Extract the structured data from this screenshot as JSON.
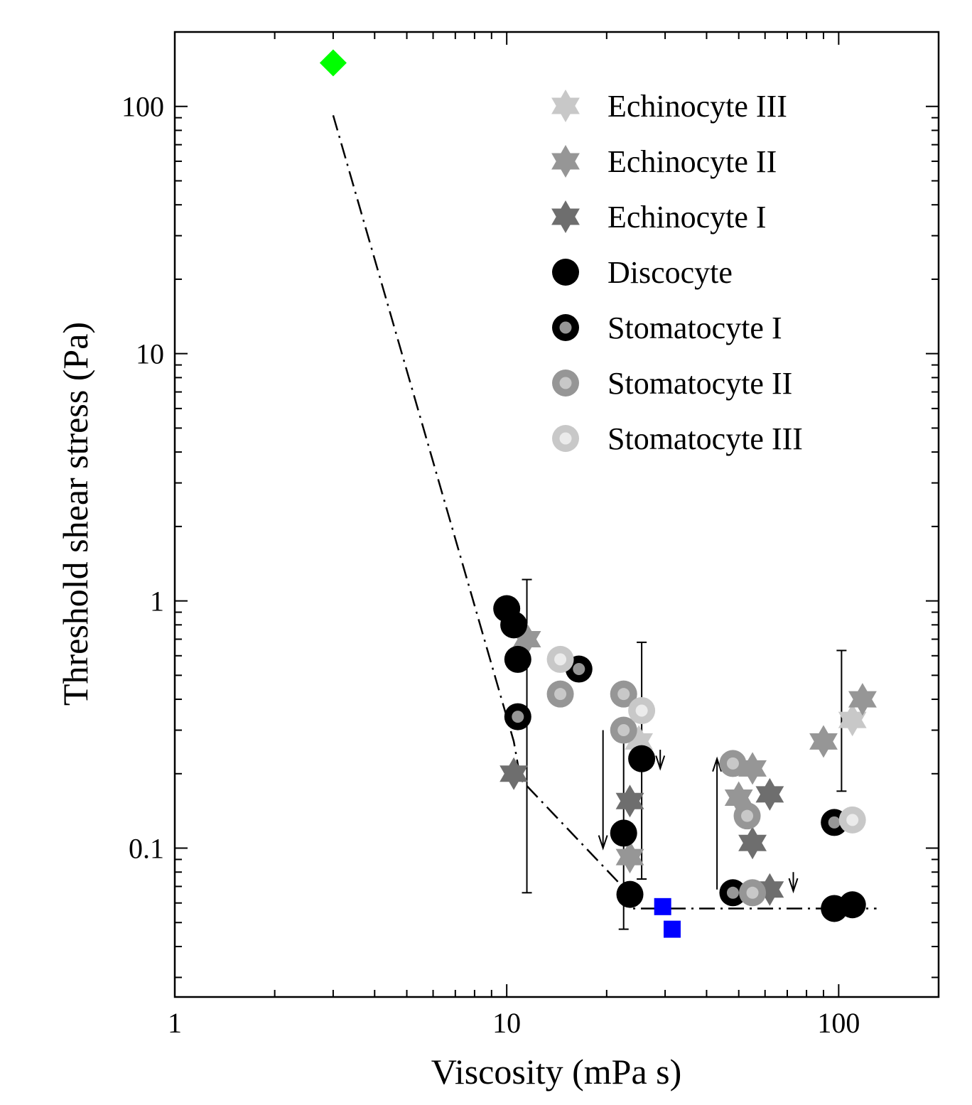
{
  "chart_data": {
    "type": "scatter",
    "title": "",
    "xlabel": "Viscosity (mPa s)",
    "ylabel": "Threshold shear stress (Pa)",
    "x_scale": "log",
    "y_scale": "log",
    "xlim": [
      1,
      200
    ],
    "ylim": [
      0.025,
      200
    ],
    "x_ticks": [
      {
        "value": 1,
        "label": "1"
      },
      {
        "value": 10,
        "label": "10"
      },
      {
        "value": 100,
        "label": "100"
      }
    ],
    "y_ticks": [
      {
        "value": 0.1,
        "label": "0.1"
      },
      {
        "value": 1,
        "label": "1"
      },
      {
        "value": 10,
        "label": "10"
      },
      {
        "value": 100,
        "label": "100"
      }
    ],
    "grid": false,
    "legend_position": "top-right",
    "colors": {
      "green": "#00ff00",
      "blue": "#0000ff",
      "light": "#c8c8c8",
      "mid": "#969696",
      "dark": "#6e6e6e",
      "black": "#000000"
    },
    "series": [
      {
        "name": "Echinocyte III",
        "marker": "star6",
        "color": "#c8c8c8",
        "points": [
          [
            110,
            0.33
          ],
          [
            25,
            0.27
          ]
        ]
      },
      {
        "name": "Echinocyte II",
        "marker": "star6",
        "color": "#969696",
        "points": [
          [
            11.5,
            0.7
          ],
          [
            50,
            0.16
          ],
          [
            55,
            0.21
          ],
          [
            90,
            0.27
          ],
          [
            118,
            0.4
          ],
          [
            23.5,
            0.092
          ]
        ]
      },
      {
        "name": "Echinocyte I",
        "marker": "star6",
        "color": "#6e6e6e",
        "points": [
          [
            10.5,
            0.2
          ],
          [
            23.5,
            0.155
          ],
          [
            55,
            0.105
          ],
          [
            62,
            0.165
          ],
          [
            62,
            0.068
          ]
        ]
      },
      {
        "name": "Discocyte",
        "marker": "circle",
        "color": "#000000",
        "points": [
          [
            10,
            0.93
          ],
          [
            10.5,
            0.8
          ],
          [
            10.8,
            0.58
          ],
          [
            25.5,
            0.23
          ],
          [
            22.5,
            0.115
          ],
          [
            23.5,
            0.065
          ],
          [
            97,
            0.057
          ],
          [
            110,
            0.059
          ]
        ]
      },
      {
        "name": "Stomatocyte I",
        "marker": "ring",
        "color": "#000000",
        "inner": "#969696",
        "points": [
          [
            10.8,
            0.34
          ],
          [
            16.5,
            0.53
          ],
          [
            48,
            0.066
          ],
          [
            97,
            0.127
          ]
        ]
      },
      {
        "name": "Stomatocyte II",
        "marker": "ring",
        "color": "#969696",
        "inner": "#c8c8c8",
        "points": [
          [
            14.5,
            0.42
          ],
          [
            22.5,
            0.42
          ],
          [
            22.5,
            0.3
          ],
          [
            48,
            0.22
          ],
          [
            53,
            0.135
          ],
          [
            55,
            0.066
          ]
        ]
      },
      {
        "name": "Stomatocyte III",
        "marker": "ring",
        "color": "#c8c8c8",
        "inner": "#ebebeb",
        "points": [
          [
            14.5,
            0.58
          ],
          [
            25.5,
            0.36
          ],
          [
            110,
            0.13
          ]
        ]
      }
    ],
    "extra_points": [
      {
        "marker": "diamond",
        "color": "#00ff00",
        "points": [
          [
            3,
            150
          ]
        ]
      },
      {
        "marker": "square",
        "color": "#0000ff",
        "points": [
          [
            29.5,
            0.058
          ],
          [
            31.5,
            0.047
          ]
        ]
      }
    ],
    "error_bars": [
      {
        "x": 11.5,
        "low": 0.066,
        "high": 1.22
      },
      {
        "x": 22.5,
        "low": 0.047,
        "high": 0.27
      },
      {
        "x": 25.5,
        "low": 0.075,
        "high": 0.68
      },
      {
        "x": 102,
        "low": 0.17,
        "high": 0.63
      }
    ],
    "arrows": [
      {
        "x": 19.5,
        "from": 0.3,
        "to": 0.1
      },
      {
        "x": 29,
        "from": 0.25,
        "to": 0.21
      },
      {
        "x": 43,
        "from": 0.068,
        "to": 0.23
      },
      {
        "x": 73,
        "from": 0.08,
        "to": 0.067
      }
    ],
    "fit_line": {
      "style": "dash-dot",
      "points": [
        [
          3,
          92
        ],
        [
          10.5,
          0.27
        ],
        [
          11,
          0.19
        ],
        [
          23.5,
          0.065
        ],
        [
          23.5,
          0.057
        ],
        [
          130,
          0.057
        ]
      ]
    }
  }
}
